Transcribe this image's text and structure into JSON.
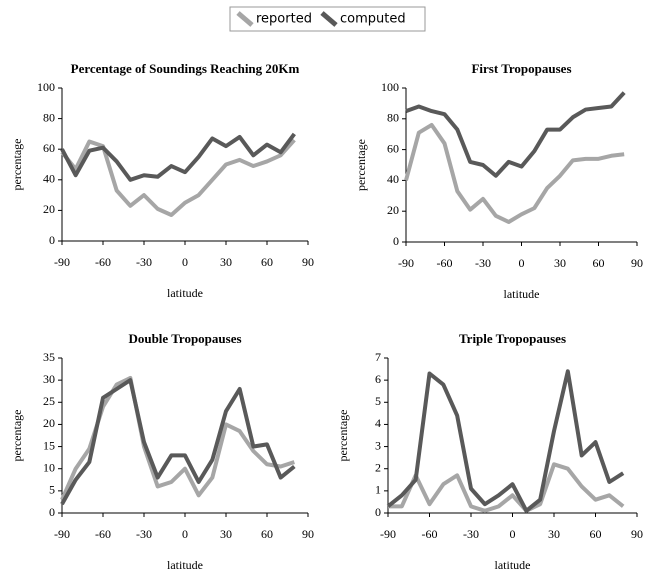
{
  "chart_data": [
    {
      "type": "line",
      "title": "Percentage of Soundings Reaching 20Km",
      "x_label": "latitude",
      "y_label": "percentage",
      "x": [
        -90,
        -80,
        -70,
        -60,
        -50,
        -40,
        -30,
        -20,
        -10,
        0,
        10,
        20,
        30,
        40,
        50,
        60,
        70,
        80
      ],
      "xlim": [
        -90,
        90
      ],
      "xticks": [
        -90,
        -60,
        -30,
        0,
        30,
        60,
        90
      ],
      "ylim": [
        0,
        100
      ],
      "yticks": [
        0,
        20,
        40,
        60,
        80,
        100
      ],
      "series": [
        {
          "name": "reported",
          "color": "#a6a6a6",
          "values": [
            58,
            47,
            65,
            62,
            33,
            23,
            30,
            21,
            17,
            25,
            30,
            40,
            50,
            53,
            49,
            52,
            56,
            66
          ]
        },
        {
          "name": "computed",
          "color": "#595959",
          "values": [
            60,
            43,
            59,
            61,
            52,
            40,
            43,
            42,
            49,
            45,
            55,
            67,
            62,
            68,
            56,
            63,
            58,
            70
          ]
        }
      ]
    },
    {
      "type": "line",
      "title": "First Tropopauses",
      "x_label": "latitude",
      "y_label": "percentage",
      "x": [
        -90,
        -80,
        -70,
        -60,
        -50,
        -40,
        -30,
        -20,
        -10,
        0,
        10,
        20,
        30,
        40,
        50,
        60,
        70,
        80
      ],
      "xlim": [
        -90,
        90
      ],
      "xticks": [
        -90,
        -60,
        -30,
        0,
        30,
        60,
        90
      ],
      "ylim": [
        0,
        100
      ],
      "yticks": [
        0,
        20,
        40,
        60,
        80,
        100
      ],
      "series": [
        {
          "name": "reported",
          "color": "#a6a6a6",
          "values": [
            40,
            71,
            76,
            64,
            33,
            21,
            28,
            17,
            13,
            18,
            22,
            35,
            43,
            53,
            54,
            54,
            56,
            57
          ]
        },
        {
          "name": "computed",
          "color": "#595959",
          "values": [
            85,
            88,
            85,
            83,
            73,
            52,
            50,
            43,
            52,
            49,
            59,
            73,
            73,
            81,
            86,
            87,
            88,
            97
          ]
        }
      ]
    },
    {
      "type": "line",
      "title": "Double Tropopauses",
      "x_label": "latitude",
      "y_label": "percentage",
      "x": [
        -90,
        -80,
        -70,
        -60,
        -50,
        -40,
        -30,
        -20,
        -10,
        0,
        10,
        20,
        30,
        40,
        50,
        60,
        70,
        80
      ],
      "xlim": [
        -90,
        90
      ],
      "xticks": [
        -90,
        -60,
        -30,
        0,
        30,
        60,
        90
      ],
      "ylim": [
        0,
        35
      ],
      "yticks": [
        0,
        5,
        10,
        15,
        20,
        25,
        30,
        35
      ],
      "series": [
        {
          "name": "reported",
          "color": "#a6a6a6",
          "values": [
            3,
            10,
            14.5,
            24,
            29,
            30.5,
            15,
            6,
            7,
            10,
            4,
            8,
            20,
            18.5,
            14,
            11,
            10.5,
            11.5
          ]
        },
        {
          "name": "computed",
          "color": "#595959",
          "values": [
            2,
            7.5,
            11.5,
            26,
            28,
            30,
            16,
            8,
            13,
            13,
            7,
            12,
            23,
            28,
            15,
            15.5,
            8,
            10.5
          ]
        }
      ]
    },
    {
      "type": "line",
      "title": "Triple Tropopauses",
      "x_label": "latitude",
      "y_label": "percentage",
      "x": [
        -90,
        -80,
        -70,
        -60,
        -50,
        -40,
        -30,
        -20,
        -10,
        0,
        10,
        20,
        30,
        40,
        50,
        60,
        70,
        80
      ],
      "xlim": [
        -90,
        90
      ],
      "xticks": [
        -90,
        -60,
        -30,
        0,
        30,
        60,
        90
      ],
      "ylim": [
        0,
        7
      ],
      "yticks": [
        0,
        1,
        2,
        3,
        4,
        5,
        6,
        7
      ],
      "series": [
        {
          "name": "reported",
          "color": "#a6a6a6",
          "values": [
            0.3,
            0.3,
            1.7,
            0.4,
            1.3,
            1.7,
            0.3,
            0.1,
            0.3,
            0.8,
            0.1,
            0.4,
            2.2,
            2.0,
            1.2,
            0.6,
            0.8,
            0.3
          ]
        },
        {
          "name": "computed",
          "color": "#595959",
          "values": [
            0.3,
            0.8,
            1.5,
            6.3,
            5.8,
            4.4,
            1.1,
            0.4,
            0.8,
            1.3,
            0.1,
            0.6,
            3.7,
            6.4,
            2.6,
            3.2,
            1.4,
            1.8
          ]
        }
      ]
    }
  ]
}
